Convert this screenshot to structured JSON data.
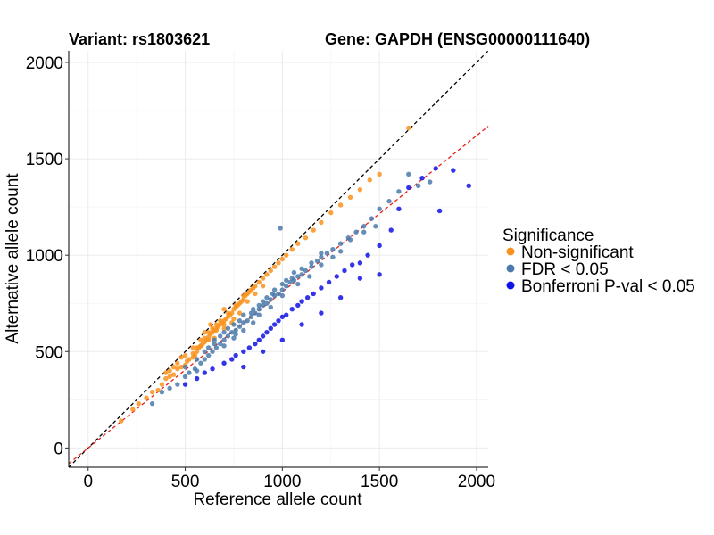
{
  "title_left": "Variant: rs1803621",
  "title_right": "Gene: GAPDH (ENSG00000111640)",
  "chart_data": {
    "type": "scatter",
    "title": "Variant: rs1803621    Gene: GAPDH (ENSG00000111640)",
    "xlabel": "Reference allele count",
    "ylabel": "Alternative allele count",
    "xlim": [
      -100,
      2060
    ],
    "ylim": [
      -100,
      2060
    ],
    "xticks": [
      0,
      500,
      1000,
      1500,
      2000
    ],
    "yticks": [
      0,
      500,
      1000,
      1500,
      2000
    ],
    "grid": true,
    "legend": {
      "title": "Significance",
      "position": "right",
      "entries": [
        {
          "label": "Non-significant",
          "color": "#f9921c"
        },
        {
          "label": "FDR < 0.05",
          "color": "#4a7aac"
        },
        {
          "label": "Bonferroni P-val < 0.05",
          "color": "#1010e8"
        }
      ]
    },
    "reference_lines": [
      {
        "slope": 1.0,
        "intercept": 0,
        "color": "#000000",
        "style": "dashed"
      },
      {
        "slope": 0.81,
        "intercept": 0,
        "color": "#e8201c",
        "style": "dashed"
      }
    ],
    "series": [
      {
        "name": "Non-significant",
        "color": "#f9921c",
        "points": [
          [
            170,
            140
          ],
          [
            230,
            200
          ],
          [
            260,
            230
          ],
          [
            300,
            260
          ],
          [
            330,
            290
          ],
          [
            360,
            300
          ],
          [
            380,
            330
          ],
          [
            400,
            360
          ],
          [
            420,
            370
          ],
          [
            440,
            380
          ],
          [
            460,
            410
          ],
          [
            480,
            420
          ],
          [
            500,
            430
          ],
          [
            510,
            450
          ],
          [
            520,
            460
          ],
          [
            540,
            470
          ],
          [
            550,
            480
          ],
          [
            560,
            500
          ],
          [
            570,
            520
          ],
          [
            580,
            530
          ],
          [
            590,
            540
          ],
          [
            600,
            550
          ],
          [
            610,
            560
          ],
          [
            620,
            575
          ],
          [
            630,
            590
          ],
          [
            640,
            600
          ],
          [
            650,
            610
          ],
          [
            660,
            620
          ],
          [
            670,
            630
          ],
          [
            680,
            640
          ],
          [
            690,
            650
          ],
          [
            700,
            660
          ],
          [
            710,
            670
          ],
          [
            720,
            680
          ],
          [
            730,
            690
          ],
          [
            740,
            700
          ],
          [
            750,
            720
          ],
          [
            760,
            730
          ],
          [
            770,
            740
          ],
          [
            780,
            750
          ],
          [
            790,
            760
          ],
          [
            800,
            770
          ],
          [
            810,
            790
          ],
          [
            820,
            800
          ],
          [
            830,
            810
          ],
          [
            840,
            820
          ],
          [
            850,
            830
          ],
          [
            860,
            840
          ],
          [
            880,
            860
          ],
          [
            900,
            880
          ],
          [
            920,
            900
          ],
          [
            940,
            920
          ],
          [
            960,
            940
          ],
          [
            980,
            960
          ],
          [
            1000,
            980
          ],
          [
            1020,
            1000
          ],
          [
            1050,
            1030
          ],
          [
            1080,
            1060
          ],
          [
            1120,
            1090
          ],
          [
            1160,
            1130
          ],
          [
            1200,
            1170
          ],
          [
            1250,
            1220
          ],
          [
            1300,
            1260
          ],
          [
            1350,
            1300
          ],
          [
            1400,
            1340
          ],
          [
            1450,
            1390
          ],
          [
            1500,
            1420
          ],
          [
            1650,
            1660
          ],
          [
            560,
            520
          ],
          [
            600,
            570
          ],
          [
            640,
            620
          ],
          [
            680,
            660
          ],
          [
            720,
            700
          ],
          [
            760,
            740
          ],
          [
            800,
            790
          ],
          [
            700,
            720
          ],
          [
            660,
            640
          ],
          [
            620,
            600
          ],
          [
            580,
            560
          ],
          [
            540,
            520
          ],
          [
            500,
            480
          ],
          [
            740,
            650
          ],
          [
            780,
            700
          ],
          [
            820,
            760
          ],
          [
            860,
            800
          ],
          [
            900,
            840
          ],
          [
            540,
            490
          ],
          [
            580,
            530
          ],
          [
            620,
            560
          ],
          [
            660,
            610
          ],
          [
            700,
            640
          ],
          [
            650,
            570
          ],
          [
            700,
            620
          ],
          [
            750,
            670
          ],
          [
            600,
            600
          ],
          [
            630,
            640
          ],
          [
            480,
            470
          ],
          [
            460,
            440
          ],
          [
            440,
            420
          ],
          [
            420,
            400
          ],
          [
            400,
            390
          ]
        ]
      },
      {
        "name": "FDR < 0.05",
        "color": "#4a7aac",
        "points": [
          [
            330,
            230
          ],
          [
            380,
            290
          ],
          [
            420,
            310
          ],
          [
            460,
            330
          ],
          [
            500,
            370
          ],
          [
            520,
            390
          ],
          [
            550,
            410
          ],
          [
            580,
            440
          ],
          [
            600,
            460
          ],
          [
            620,
            480
          ],
          [
            640,
            500
          ],
          [
            660,
            520
          ],
          [
            680,
            540
          ],
          [
            700,
            560
          ],
          [
            720,
            580
          ],
          [
            740,
            600
          ],
          [
            760,
            610
          ],
          [
            780,
            630
          ],
          [
            800,
            650
          ],
          [
            820,
            660
          ],
          [
            840,
            680
          ],
          [
            860,
            700
          ],
          [
            880,
            720
          ],
          [
            900,
            740
          ],
          [
            920,
            750
          ],
          [
            940,
            770
          ],
          [
            960,
            790
          ],
          [
            980,
            800
          ],
          [
            1000,
            820
          ],
          [
            1020,
            840
          ],
          [
            1040,
            860
          ],
          [
            1060,
            870
          ],
          [
            1080,
            890
          ],
          [
            1100,
            900
          ],
          [
            1120,
            920
          ],
          [
            1150,
            940
          ],
          [
            1180,
            970
          ],
          [
            1200,
            990
          ],
          [
            1230,
            1010
          ],
          [
            1260,
            1030
          ],
          [
            1300,
            1060
          ],
          [
            1340,
            1090
          ],
          [
            1380,
            1120
          ],
          [
            1420,
            1150
          ],
          [
            1460,
            1190
          ],
          [
            1500,
            1240
          ],
          [
            1550,
            1280
          ],
          [
            1600,
            1330
          ],
          [
            1650,
            1420
          ],
          [
            1700,
            1360
          ],
          [
            1760,
            1380
          ],
          [
            990,
            1140
          ],
          [
            650,
            560
          ],
          [
            700,
            600
          ],
          [
            750,
            640
          ],
          [
            800,
            690
          ],
          [
            850,
            720
          ],
          [
            900,
            760
          ],
          [
            950,
            800
          ],
          [
            1000,
            850
          ],
          [
            1050,
            880
          ],
          [
            1100,
            930
          ],
          [
            1150,
            960
          ],
          [
            1200,
            1010
          ],
          [
            700,
            530
          ],
          [
            750,
            570
          ],
          [
            800,
            610
          ],
          [
            850,
            650
          ],
          [
            600,
            500
          ],
          [
            650,
            540
          ],
          [
            720,
            620
          ],
          [
            780,
            660
          ],
          [
            840,
            700
          ],
          [
            880,
            740
          ],
          [
            920,
            780
          ],
          [
            960,
            820
          ],
          [
            1020,
            870
          ],
          [
            1060,
            910
          ],
          [
            680,
            580
          ],
          [
            620,
            520
          ],
          [
            560,
            460
          ],
          [
            500,
            420
          ],
          [
            560,
            400
          ],
          [
            760,
            590
          ],
          [
            880,
            690
          ],
          [
            940,
            730
          ],
          [
            1000,
            790
          ],
          [
            1080,
            850
          ],
          [
            1140,
            890
          ],
          [
            1200,
            950
          ],
          [
            1260,
            990
          ],
          [
            1300,
            1020
          ],
          [
            1350,
            1080
          ],
          [
            1420,
            1120
          ],
          [
            1480,
            1150
          ]
        ]
      },
      {
        "name": "Bonferroni P-val < 0.05",
        "color": "#1010e8",
        "points": [
          [
            500,
            330
          ],
          [
            560,
            360
          ],
          [
            600,
            390
          ],
          [
            640,
            410
          ],
          [
            700,
            440
          ],
          [
            740,
            460
          ],
          [
            760,
            480
          ],
          [
            800,
            500
          ],
          [
            830,
            520
          ],
          [
            860,
            540
          ],
          [
            880,
            560
          ],
          [
            900,
            580
          ],
          [
            920,
            600
          ],
          [
            940,
            620
          ],
          [
            960,
            640
          ],
          [
            980,
            660
          ],
          [
            1000,
            680
          ],
          [
            1020,
            690
          ],
          [
            1050,
            720
          ],
          [
            1080,
            740
          ],
          [
            1100,
            760
          ],
          [
            1130,
            780
          ],
          [
            1160,
            800
          ],
          [
            1200,
            830
          ],
          [
            1240,
            860
          ],
          [
            1280,
            890
          ],
          [
            1320,
            920
          ],
          [
            1360,
            950
          ],
          [
            1400,
            960
          ],
          [
            1440,
            1000
          ],
          [
            1500,
            1050
          ],
          [
            1560,
            1130
          ],
          [
            1600,
            1240
          ],
          [
            1650,
            1350
          ],
          [
            1720,
            1400
          ],
          [
            1790,
            1450
          ],
          [
            1880,
            1440
          ],
          [
            1960,
            1360
          ],
          [
            1810,
            1230
          ],
          [
            800,
            420
          ],
          [
            900,
            500
          ],
          [
            1000,
            560
          ],
          [
            1100,
            640
          ],
          [
            1200,
            700
          ],
          [
            1300,
            780
          ],
          [
            1400,
            880
          ],
          [
            1500,
            900
          ]
        ]
      }
    ]
  }
}
